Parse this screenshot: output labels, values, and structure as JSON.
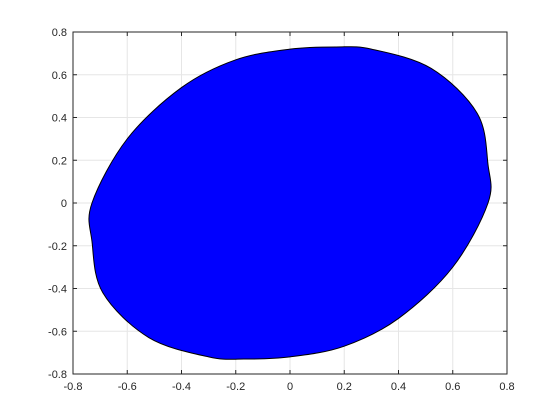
{
  "chart_data": {
    "type": "area",
    "title": "",
    "xlabel": "",
    "ylabel": "",
    "xlim": [
      -0.8,
      0.8
    ],
    "ylim": [
      -0.8,
      0.8
    ],
    "xticks": [
      -0.8,
      -0.6,
      -0.4,
      -0.2,
      0,
      0.2,
      0.4,
      0.6,
      0.8
    ],
    "yticks": [
      -0.8,
      -0.6,
      -0.4,
      -0.2,
      0,
      0.2,
      0.4,
      0.6,
      0.8
    ],
    "xtick_labels": [
      "-0.8",
      "-0.6",
      "-0.4",
      "-0.2",
      "0",
      "0.2",
      "0.4",
      "0.6",
      "0.8"
    ],
    "ytick_labels": [
      "-0.8",
      "-0.6",
      "-0.4",
      "-0.2",
      "0",
      "0.2",
      "0.4",
      "0.6",
      "0.8"
    ],
    "grid": true,
    "legend": "none",
    "series": [
      {
        "shape": "filled-ellipse",
        "fill_color": "#0000ff",
        "edge_color": "#000000",
        "boundary_points": [
          [
            0.73,
            0.18
          ],
          [
            0.69,
            0.42
          ],
          [
            0.52,
            0.63
          ],
          [
            0.3,
            0.72
          ],
          [
            0.17,
            0.73
          ],
          [
            0.0,
            0.72
          ],
          [
            -0.2,
            0.67
          ],
          [
            -0.4,
            0.54
          ],
          [
            -0.6,
            0.3
          ],
          [
            -0.73,
            0.0
          ],
          [
            -0.73,
            -0.18
          ],
          [
            -0.69,
            -0.42
          ],
          [
            -0.52,
            -0.63
          ],
          [
            -0.3,
            -0.72
          ],
          [
            -0.17,
            -0.73
          ],
          [
            0.0,
            -0.72
          ],
          [
            0.2,
            -0.67
          ],
          [
            0.4,
            -0.54
          ],
          [
            0.6,
            -0.3
          ],
          [
            0.73,
            0.0
          ]
        ]
      }
    ]
  }
}
